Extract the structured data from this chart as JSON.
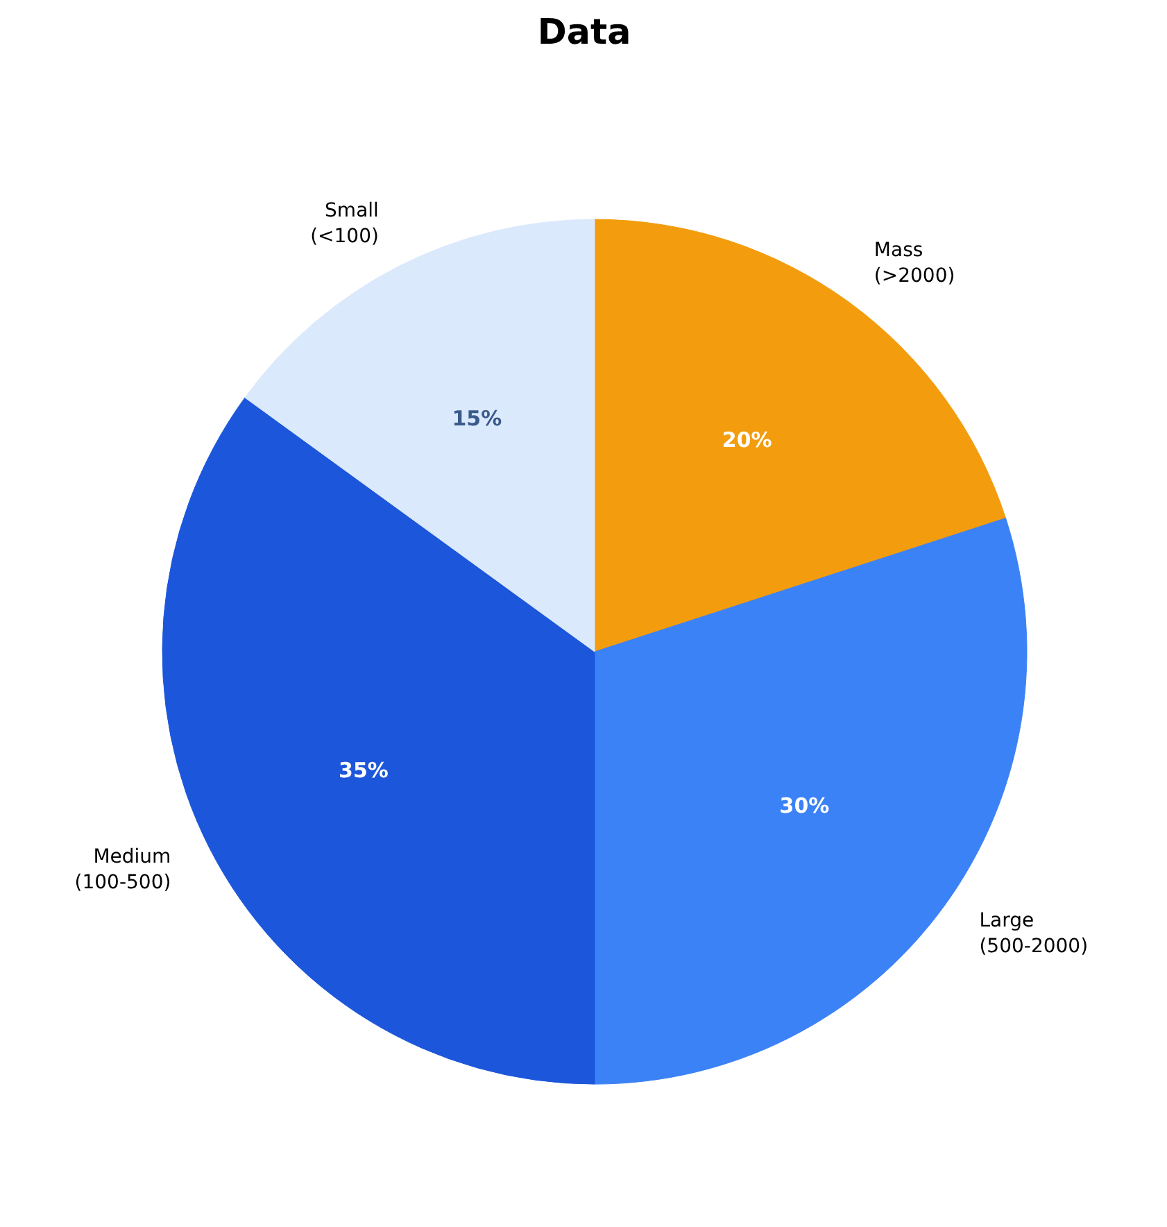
{
  "chart_data": {
    "type": "pie",
    "title": "Data",
    "categories": [
      "Mass\n(>2000)",
      "Large\n(500-2000)",
      "Medium\n(100-500)",
      "Small\n(<100)"
    ],
    "values": [
      20,
      30,
      35,
      15
    ],
    "value_labels": [
      "20%",
      "30%",
      "35%",
      "15%"
    ],
    "colors": [
      "#f39c0e",
      "#3b82f6",
      "#1c56db",
      "#dbe9fd"
    ]
  }
}
